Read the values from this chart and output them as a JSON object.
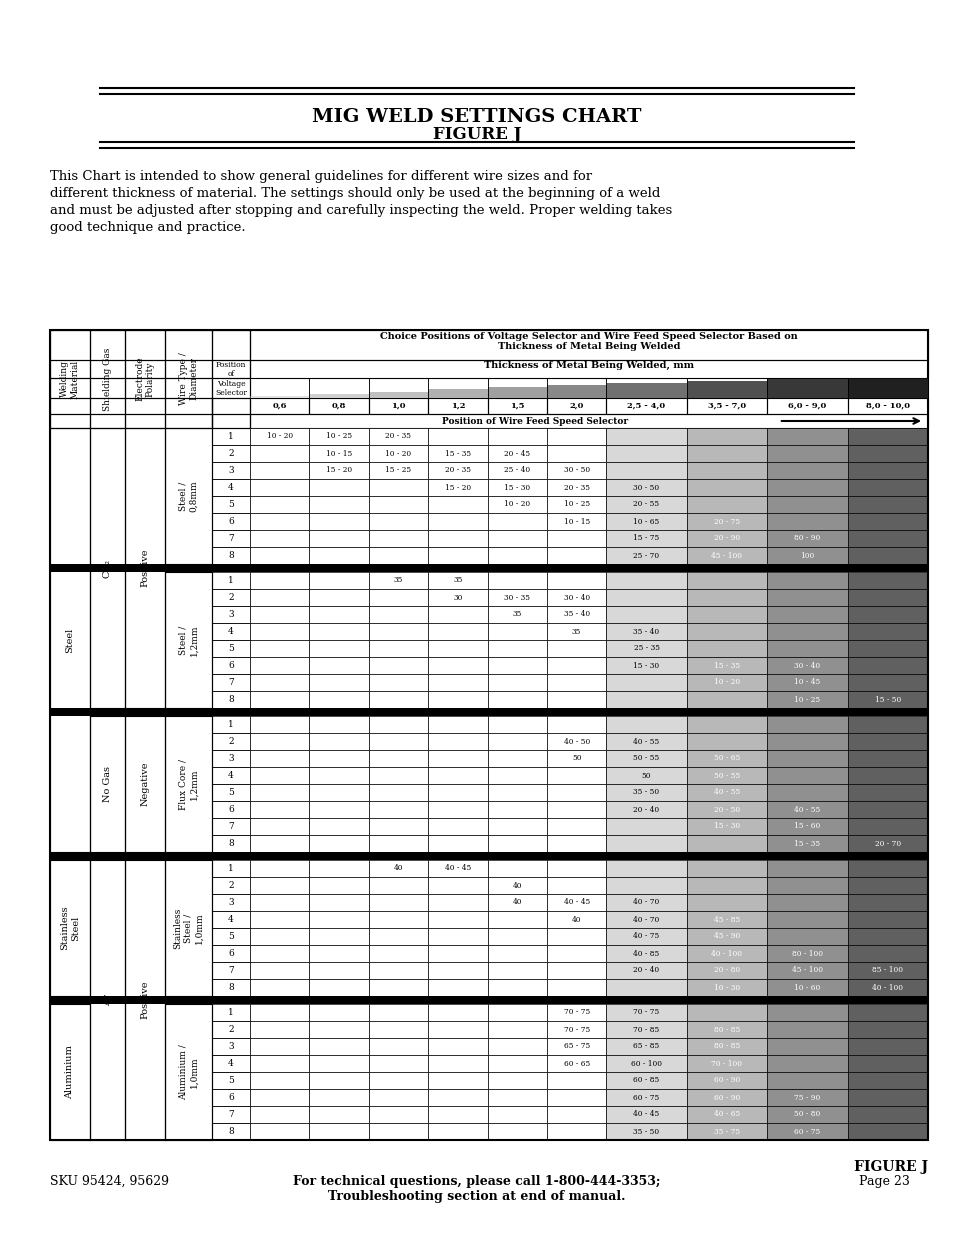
{
  "title": "MIG WELD SETTINGS CHART",
  "subtitle": "FIGURE J",
  "body_text": "This Chart is intended to show general guidelines for different wire sizes and for\ndifferent thickness of material. The settings should only be used at the beginning of a weld\nand must be adjusted after stopping and carefully inspecting the weld. Proper welding takes\ngood technique and practice.",
  "header1": "Choice Positions of Voltage Selector and Wire Feed Speed Selector Based on\nThickness of Metal Being Welded",
  "header2": "Thickness of Metal Being Welded, mm",
  "col_headers": [
    "0,6",
    "0,8",
    "1,0",
    "1,2",
    "1,5",
    "2,0",
    "2,5 - 4,0",
    "3,5 - 7,0",
    "6,0 - 9,0",
    "8,0 - 10,0"
  ],
  "wire_feed_label": "Position of Wire Feed Speed Selector",
  "position_label": "Position\nof\nVoltage\nSelector",
  "table_data": {
    "steel_08": [
      [
        "10 - 20",
        "10 - 25",
        "20 - 35",
        "",
        "",
        "",
        "",
        "",
        "",
        ""
      ],
      [
        "",
        "10 - 15",
        "10 - 20",
        "15 - 35",
        "20 - 45",
        "",
        "",
        "",
        "",
        ""
      ],
      [
        "",
        "15 - 20",
        "15 - 25",
        "20 - 35",
        "25 - 40",
        "30 - 50",
        "",
        "",
        "",
        ""
      ],
      [
        "",
        "",
        "",
        "15 - 20",
        "15 - 30",
        "20 - 35",
        "30 - 50",
        "",
        "",
        ""
      ],
      [
        "",
        "",
        "",
        "",
        "10 - 20",
        "10 - 25",
        "20 - 55",
        "",
        "",
        ""
      ],
      [
        "",
        "",
        "",
        "",
        "",
        "10 - 15",
        "10 - 65",
        "20 - 75",
        "",
        ""
      ],
      [
        "",
        "",
        "",
        "",
        "",
        "",
        "15 - 75",
        "20 - 90",
        "80 - 90",
        ""
      ],
      [
        "",
        "",
        "",
        "",
        "",
        "",
        "25 - 70",
        "45 - 100",
        "100",
        ""
      ]
    ],
    "steel_12": [
      [
        "",
        "",
        "35",
        "35",
        "",
        "",
        "",
        "",
        "",
        ""
      ],
      [
        "",
        "",
        "",
        "30",
        "30 - 35",
        "30 - 40",
        "",
        "",
        "",
        ""
      ],
      [
        "",
        "",
        "",
        "",
        "35",
        "35 - 40",
        "",
        "",
        "",
        ""
      ],
      [
        "",
        "",
        "",
        "",
        "",
        "35",
        "35 - 40",
        "",
        "",
        ""
      ],
      [
        "",
        "",
        "",
        "",
        "",
        "",
        "25 - 35",
        "",
        "",
        ""
      ],
      [
        "",
        "",
        "",
        "",
        "",
        "",
        "15 - 30",
        "15 - 35",
        "30 - 40",
        ""
      ],
      [
        "",
        "",
        "",
        "",
        "",
        "",
        "",
        "10 - 20",
        "10 - 45",
        ""
      ],
      [
        "",
        "",
        "",
        "",
        "",
        "",
        "",
        "",
        "10 - 25",
        "15 - 50"
      ]
    ],
    "flux_12": [
      [
        "",
        "",
        "",
        "",
        "",
        "",
        "",
        "",
        "",
        ""
      ],
      [
        "",
        "",
        "",
        "",
        "",
        "40 - 50",
        "40 - 55",
        "",
        "",
        ""
      ],
      [
        "",
        "",
        "",
        "",
        "",
        "50",
        "50 - 55",
        "50 - 65",
        "",
        ""
      ],
      [
        "",
        "",
        "",
        "",
        "",
        "",
        "50",
        "50 - 55",
        "",
        ""
      ],
      [
        "",
        "",
        "",
        "",
        "",
        "",
        "35 - 50",
        "40 - 55",
        "",
        ""
      ],
      [
        "",
        "",
        "",
        "",
        "",
        "",
        "20 - 40",
        "20 - 50",
        "40 - 55",
        ""
      ],
      [
        "",
        "",
        "",
        "",
        "",
        "",
        "",
        "15 - 30",
        "15 - 60",
        ""
      ],
      [
        "",
        "",
        "",
        "",
        "",
        "",
        "",
        "",
        "15 - 35",
        "20 - 70"
      ]
    ],
    "stainless_10": [
      [
        "",
        "",
        "40",
        "40 - 45",
        "",
        "",
        "",
        "",
        "",
        ""
      ],
      [
        "",
        "",
        "",
        "",
        "40",
        "",
        "",
        "",
        "",
        ""
      ],
      [
        "",
        "",
        "",
        "",
        "40",
        "40 - 45",
        "40 - 70",
        "",
        "",
        ""
      ],
      [
        "",
        "",
        "",
        "",
        "",
        "40",
        "40 - 70",
        "45 - 85",
        "",
        ""
      ],
      [
        "",
        "",
        "",
        "",
        "",
        "",
        "40 - 75",
        "45 - 90",
        "",
        ""
      ],
      [
        "",
        "",
        "",
        "",
        "",
        "",
        "40 - 85",
        "40 - 100",
        "80 - 100",
        ""
      ],
      [
        "",
        "",
        "",
        "",
        "",
        "",
        "20 - 40",
        "20 - 80",
        "45 - 100",
        "85 - 100"
      ],
      [
        "",
        "",
        "",
        "",
        "",
        "",
        "",
        "10 - 30",
        "10 - 60",
        "40 - 100"
      ]
    ],
    "aluminium_10": [
      [
        "",
        "",
        "",
        "",
        "",
        "70 - 75",
        "70 - 75",
        "",
        "",
        ""
      ],
      [
        "",
        "",
        "",
        "",
        "",
        "70 - 75",
        "70 - 85",
        "80 - 85",
        "",
        ""
      ],
      [
        "",
        "",
        "",
        "",
        "",
        "65 - 75",
        "65 - 85",
        "80 - 85",
        "",
        ""
      ],
      [
        "",
        "",
        "",
        "",
        "",
        "60 - 65",
        "60 - 100",
        "70 - 100",
        "",
        ""
      ],
      [
        "",
        "",
        "",
        "",
        "",
        "",
        "60 - 85",
        "60 - 90",
        "",
        ""
      ],
      [
        "",
        "",
        "",
        "",
        "",
        "",
        "60 - 75",
        "60 - 90",
        "75 - 90",
        ""
      ],
      [
        "",
        "",
        "",
        "",
        "",
        "",
        "40 - 45",
        "40 - 65",
        "50 - 80",
        ""
      ],
      [
        "",
        "",
        "",
        "",
        "",
        "",
        "35 - 50",
        "35 - 75",
        "60 - 75",
        ""
      ]
    ]
  },
  "footer_figure": "FIGURE J",
  "footer_sku": "SKU 95424, 95629",
  "footer_center": "For technical questions, please call 1-800-444-3353;\nTroubleshooting section at end of manual.",
  "footer_page": "Page 23"
}
